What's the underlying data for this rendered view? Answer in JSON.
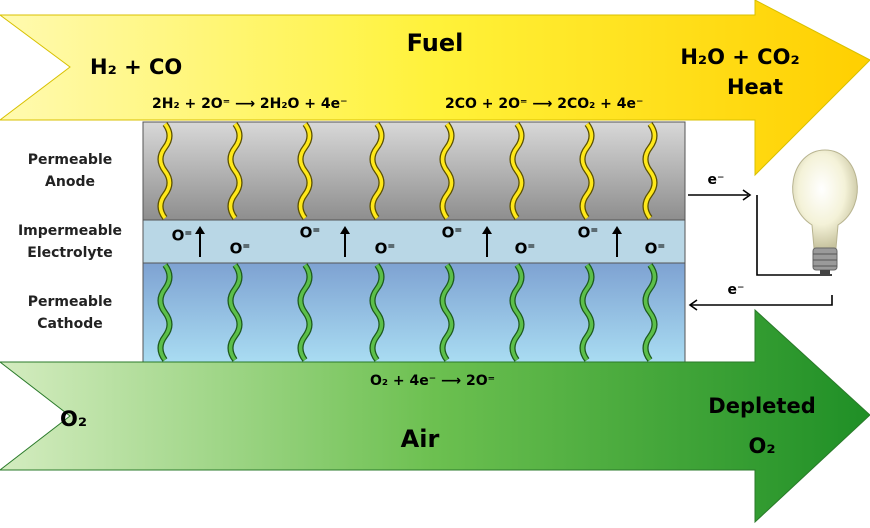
{
  "fuel": {
    "label": "Fuel",
    "inlet": "H₂ + CO",
    "outlet": [
      "H₂O + CO₂",
      "Heat"
    ]
  },
  "anode_reactions": [
    "2H₂ + 2O⁼ ⟶ 2H₂O + 4e⁻",
    "2CO + 2O⁼ ⟶ 2CO₂ + 4e⁻"
  ],
  "layers": [
    {
      "lines": [
        "Permeable",
        "Anode"
      ]
    },
    {
      "lines": [
        "Impermeable",
        "Electrolyte"
      ]
    },
    {
      "lines": [
        "Permeable",
        "Cathode"
      ]
    }
  ],
  "ions": [
    "O⁼",
    "O⁼",
    "O⁼",
    "O⁼",
    "O⁼",
    "O⁼",
    "O⁼",
    "O⁼"
  ],
  "electrons": [
    "e⁻",
    "e⁻"
  ],
  "cathode_reaction": "O₂ + 4e⁻ ⟶ 2O⁼",
  "air": {
    "label": "Air",
    "inlet": "O₂",
    "outlet": [
      "Depleted",
      "O₂"
    ]
  }
}
